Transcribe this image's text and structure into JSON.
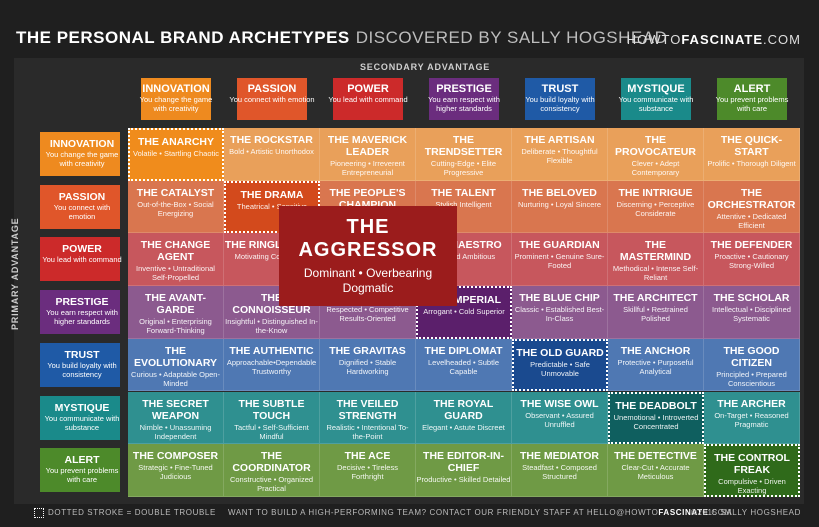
{
  "header": {
    "title_main": "THE PERSONAL BRAND ARCHETYPES",
    "title_sub": "DISCOVERED BY SALLY HOGSHEAD",
    "site_pre": "HOWTO",
    "site_bold": "FASCINATE",
    "site_post": ".COM"
  },
  "axes": {
    "secondary": "SECONDARY ADVANTAGE",
    "primary": "PRIMARY ADVANTAGE"
  },
  "advantages": [
    {
      "name": "INNOVATION",
      "desc": "You change the game with creativity",
      "color": "#ee8a1f"
    },
    {
      "name": "PASSION",
      "desc": "You connect with emotion",
      "color": "#e0562a"
    },
    {
      "name": "POWER",
      "desc": "You lead with command",
      "color": "#cc2a2a"
    },
    {
      "name": "PRESTIGE",
      "desc": "You earn respect with higher standards",
      "color": "#6b2d7e"
    },
    {
      "name": "TRUST",
      "desc": "You build loyalty with consistency",
      "color": "#1f5aa6"
    },
    {
      "name": "MYSTIQUE",
      "desc": "You communicate with substance",
      "color": "#1a8a8a"
    },
    {
      "name": "ALERT",
      "desc": "You prevent problems with care",
      "color": "#4d8a2a"
    }
  ],
  "rows": [
    {
      "bg": "#e9a05a",
      "cells": [
        {
          "name": "THE ANARCHY",
          "desc": "Volatile • Startling Chaotic",
          "bg": "#f08c1c",
          "dbl": true
        },
        {
          "name": "THE ROCKSTAR",
          "desc": "Bold • Artistic Unorthodox"
        },
        {
          "name": "THE MAVERICK LEADER",
          "desc": "Pioneering • Irreverent Entrepreneurial"
        },
        {
          "name": "THE TRENDSETTER",
          "desc": "Cutting-Edge • Elite Progressive"
        },
        {
          "name": "THE ARTISAN",
          "desc": "Deliberate • Thoughtful Flexible"
        },
        {
          "name": "THE PROVOCATEUR",
          "desc": "Clever • Adept Contemporary"
        },
        {
          "name": "THE QUICK-START",
          "desc": "Prolific • Thorough Diligent"
        }
      ]
    },
    {
      "bg": "#d9764f",
      "cells": [
        {
          "name": "THE CATALYST",
          "desc": "Out-of-the-Box • Social Energizing"
        },
        {
          "name": "THE DRAMA",
          "desc": "Theatrical • Sensitive",
          "bg": "#d34a1c",
          "dbl": true
        },
        {
          "name": "THE PEOPLE'S CHAMPION",
          "desc": ""
        },
        {
          "name": "THE TALENT",
          "desc": "Stylish Intelligent"
        },
        {
          "name": "THE BELOVED",
          "desc": "Nurturing • Loyal Sincere"
        },
        {
          "name": "THE INTRIGUE",
          "desc": "Discerning • Perceptive Considerate"
        },
        {
          "name": "THE ORCHESTRATOR",
          "desc": "Attentive • Dedicated Efficient"
        }
      ]
    },
    {
      "bg": "#c7575d",
      "cells": [
        {
          "name": "THE CHANGE AGENT",
          "desc": "Inventive • Untraditional Self-Propelled"
        },
        {
          "name": "THE RINGLEADER",
          "desc": "Motivating Compelling"
        },
        {
          "name": "",
          "desc": ""
        },
        {
          "name": "THE MAESTRO",
          "desc": "Focused Ambitious"
        },
        {
          "name": "THE GUARDIAN",
          "desc": "Prominent • Genuine Sure-Footed"
        },
        {
          "name": "THE MASTERMIND",
          "desc": "Methodical • Intense Self-Reliant"
        },
        {
          "name": "THE DEFENDER",
          "desc": "Proactive • Cautionary Strong-Willed"
        }
      ]
    },
    {
      "bg": "#8c5a8f",
      "cells": [
        {
          "name": "THE AVANT-GARDE",
          "desc": "Original • Enterprising Forward-Thinking"
        },
        {
          "name": "THE CONNOISSEUR",
          "desc": "Insightful • Distinguished In-the-Know"
        },
        {
          "name": "THE VICTOR",
          "desc": "Respected • Competitive Results-Oriented"
        },
        {
          "name": "THE IMPERIAL",
          "desc": "Arrogant • Cold Superior",
          "bg": "#5b1f6b",
          "dbl": true
        },
        {
          "name": "THE BLUE CHIP",
          "desc": "Classic • Established Best-In-Class"
        },
        {
          "name": "THE ARCHITECT",
          "desc": "Skillful • Restrained Polished"
        },
        {
          "name": "THE SCHOLAR",
          "desc": "Intellectual • Disciplined Systematic"
        }
      ]
    },
    {
      "bg": "#4f78b3",
      "cells": [
        {
          "name": "THE EVOLUTIONARY",
          "desc": "Curious • Adaptable Open-Minded"
        },
        {
          "name": "THE AUTHENTIC",
          "desc": "Approachable•Dependable Trustworthy"
        },
        {
          "name": "THE GRAVITAS",
          "desc": "Dignified • Stable Hardworking"
        },
        {
          "name": "THE DIPLOMAT",
          "desc": "Levelheaded • Subtle Capable"
        },
        {
          "name": "THE OLD GUARD",
          "desc": "Predictable • Safe Unmovable",
          "bg": "#1a4a8f",
          "dbl": true
        },
        {
          "name": "THE ANCHOR",
          "desc": "Protective • Purposeful Analytical"
        },
        {
          "name": "THE GOOD CITIZEN",
          "desc": "Principled • Prepared Conscientious"
        }
      ]
    },
    {
      "bg": "#2f9090",
      "cells": [
        {
          "name": "THE SECRET WEAPON",
          "desc": "Nimble • Unassuming Independent"
        },
        {
          "name": "THE SUBTLE TOUCH",
          "desc": "Tactful • Self-Sufficient Mindful"
        },
        {
          "name": "THE VEILED STRENGTH",
          "desc": "Realistic • Intentional To-the-Point"
        },
        {
          "name": "THE ROYAL GUARD",
          "desc": "Elegant • Astute Discreet"
        },
        {
          "name": "THE WISE OWL",
          "desc": "Observant • Assured Unruffled"
        },
        {
          "name": "THE DEADBOLT",
          "desc": "Unemotional • Introverted Concentrated",
          "bg": "#0f5f5f",
          "dbl": true
        },
        {
          "name": "THE ARCHER",
          "desc": "On-Target • Reasoned Pragmatic"
        }
      ]
    },
    {
      "bg": "#6f9a45",
      "cells": [
        {
          "name": "THE COMPOSER",
          "desc": "Strategic • Fine-Tuned Judicious"
        },
        {
          "name": "THE COORDINATOR",
          "desc": "Constructive • Organized Practical"
        },
        {
          "name": "THE ACE",
          "desc": "Decisive • Tireless Forthright"
        },
        {
          "name": "THE EDITOR-IN-CHIEF",
          "desc": "Productive • Skilled Detailed"
        },
        {
          "name": "THE MEDIATOR",
          "desc": "Steadfast • Composed Structured"
        },
        {
          "name": "THE DETECTIVE",
          "desc": "Clear-Cut • Accurate Meticulous"
        },
        {
          "name": "THE CONTROL FREAK",
          "desc": "Compulsive • Driven Exacting",
          "bg": "#2f6a1a",
          "dbl": true
        }
      ]
    }
  ],
  "popup": {
    "line1": "THE",
    "line2": "AGGRESSOR",
    "desc1": "Dominant • Overbearing",
    "desc2": "Dogmatic"
  },
  "footer": {
    "legend": "DOTTED STROKE = DOUBLE TROUBLE",
    "cta_pre": "WANT TO BUILD A HIGH-PERFORMING TEAM? CONTACT OUR FRIENDLY STAFF AT HELLO@HOWTO",
    "cta_bold": "FASCINATE",
    "cta_post": ".COM",
    "copyright": "©2015 SALLY HOGSHEAD"
  }
}
